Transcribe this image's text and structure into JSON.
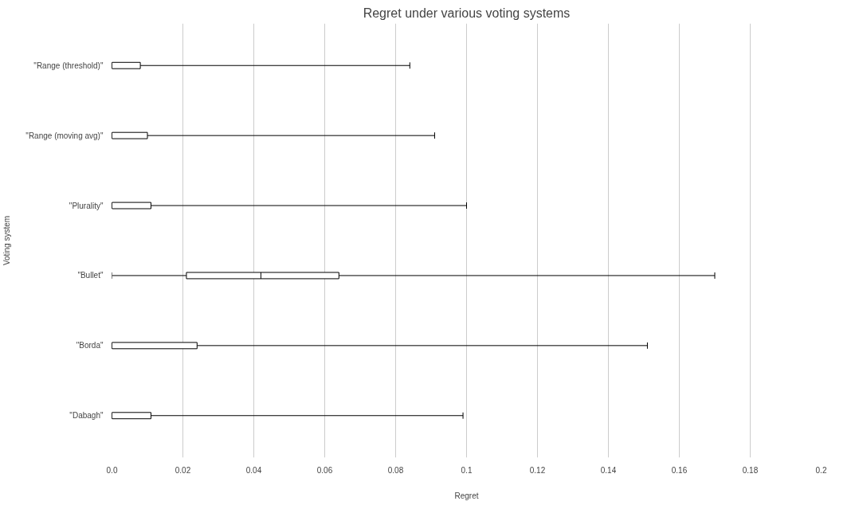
{
  "chart_data": {
    "type": "box",
    "title": "Regret under various voting systems",
    "xlabel": "Regret",
    "ylabel": "Voting system",
    "orientation": "horizontal",
    "categories": [
      "\"Range (threshold)\"",
      "\"Range (moving avg)\"",
      "\"Plurality\"",
      "\"Bullet\"",
      "\"Borda\"",
      "\"Dabagh\""
    ],
    "boxes": [
      {
        "low": 0,
        "q1": 0,
        "median": 0,
        "q3": 0.008,
        "high": 0.084
      },
      {
        "low": 0,
        "q1": 0,
        "median": 0,
        "q3": 0.01,
        "high": 0.091
      },
      {
        "low": 0,
        "q1": 0,
        "median": 0,
        "q3": 0.011,
        "high": 0.1
      },
      {
        "low": 0,
        "q1": 0.021,
        "median": 0.042,
        "q3": 0.064,
        "high": 0.17
      },
      {
        "low": 0,
        "q1": 0,
        "median": 0,
        "q3": 0.024,
        "high": 0.151
      },
      {
        "low": 0,
        "q1": 0,
        "median": 0,
        "q3": 0.011,
        "high": 0.099
      }
    ],
    "color": "#ffffff",
    "xlim": [
      0,
      0.2
    ],
    "xticks": [
      {
        "value": 0,
        "label": "0.0"
      },
      0.02,
      0.04,
      0.06,
      0.08,
      0.1,
      0.12,
      0.14,
      0.16,
      0.18,
      0.2
    ],
    "grid": "x"
  }
}
